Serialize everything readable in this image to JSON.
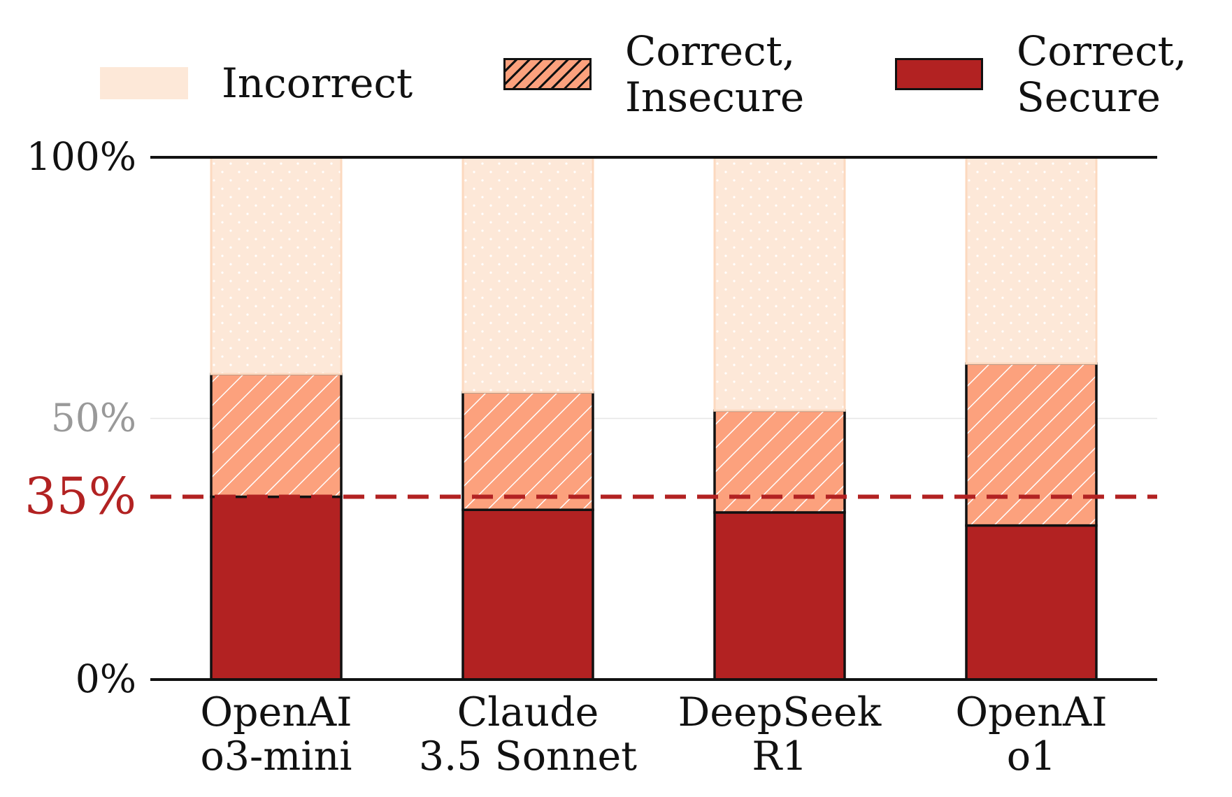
{
  "chart_data": {
    "type": "bar",
    "stacked": true,
    "categories": [
      "OpenAI\no3-mini",
      "Claude\n3.5 Sonnet",
      "DeepSeek\nR1",
      "OpenAI\no1"
    ],
    "series": [
      {
        "name": "Correct,\nSecure",
        "values": [
          35,
          32.5,
          32,
          29.5
        ],
        "color": "#b22222",
        "pattern": "solid"
      },
      {
        "name": "Correct,\nInsecure",
        "values": [
          23.5,
          22.5,
          19.5,
          31
        ],
        "color": "#fca17d",
        "pattern": "hatch"
      },
      {
        "name": "Incorrect",
        "values": [
          41.5,
          45,
          48.5,
          39.5
        ],
        "color": "#fde8d8",
        "pattern": "dots"
      }
    ],
    "legend_order": [
      "Incorrect",
      "Correct,\nInsecure",
      "Correct,\nSecure"
    ],
    "yticks": [
      {
        "value": 0,
        "label": "0%",
        "color": "#111111"
      },
      {
        "value": 50,
        "label": "50%",
        "color": "#999999"
      },
      {
        "value": 100,
        "label": "100%",
        "color": "#111111"
      }
    ],
    "reference_line": {
      "value": 35,
      "label": "35%",
      "color": "#b22222",
      "style": "dashed"
    },
    "ylim": [
      0,
      100
    ],
    "title": "",
    "xlabel": "",
    "ylabel": "",
    "legend_position": "top",
    "grid": false
  }
}
